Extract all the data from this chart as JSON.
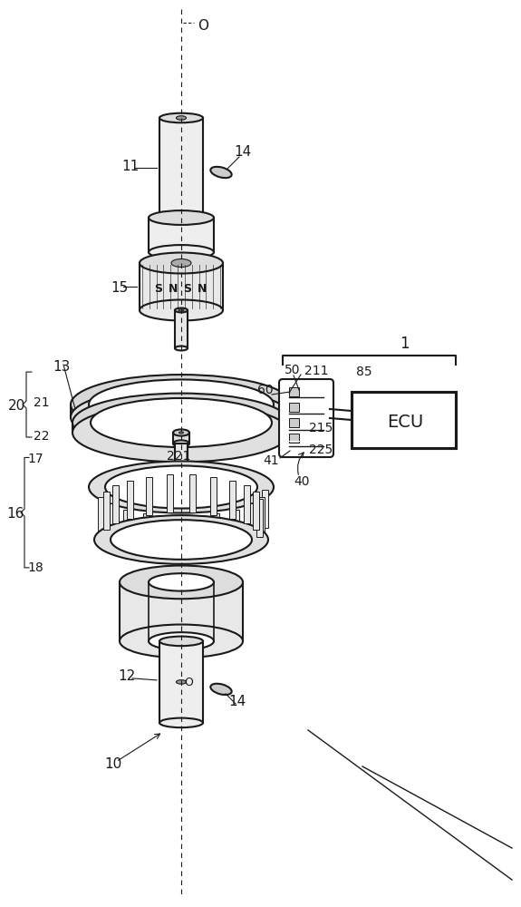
{
  "bg_color": "#ffffff",
  "line_color": "#1a1a1a",
  "line_width": 1.5,
  "thin_line": 0.8,
  "labels": {
    "O_top": "O",
    "11": "11",
    "14_top": "14",
    "15": "15",
    "13": "13",
    "20": "20",
    "21": "21",
    "22": "22",
    "211": "211",
    "215": "215",
    "225": "225",
    "221": "221",
    "16": "16",
    "17": "17",
    "18": "18",
    "12": "12",
    "14_bot": "14",
    "10": "10",
    "1": "1",
    "60": "60",
    "50": "50",
    "85": "85",
    "41": "41",
    "40": "40",
    "ECU": "ECU"
  }
}
